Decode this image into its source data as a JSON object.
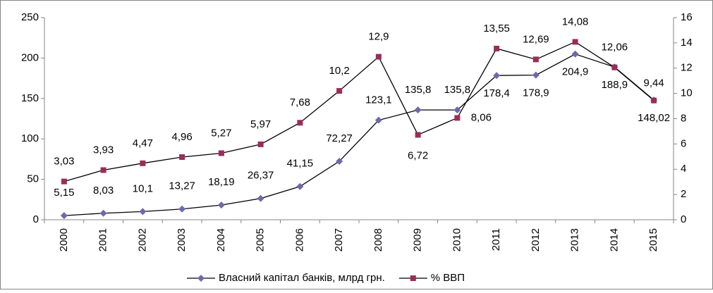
{
  "chart_data": {
    "type": "line",
    "categories": [
      "2000",
      "2001",
      "2002",
      "2003",
      "2004",
      "2005",
      "2006",
      "2007",
      "2008",
      "2009",
      "2010",
      "2011",
      "2012",
      "2013",
      "2014",
      "2015"
    ],
    "series": [
      {
        "name": "Власний капітал банків, млрд грн.",
        "color": "#6b6bab",
        "marker": "diamond",
        "values": [
          5.15,
          8.03,
          10.1,
          13.27,
          18.19,
          26.37,
          41.15,
          72.27,
          123.1,
          135.8,
          135.8,
          178.4,
          178.9,
          204.9,
          188.9,
          148.02
        ],
        "value_labels": [
          "5,15",
          "8,03",
          "10,1",
          "13,27",
          "18,19",
          "26,37",
          "41,15",
          "72,27",
          "123,1",
          "135,8",
          "135,8",
          "178,4",
          "178,9",
          "204,9",
          "188,9",
          "148,02"
        ]
      },
      {
        "name": "% ВВП",
        "color": "#9b2c5a",
        "marker": "square",
        "axis": "y2",
        "values": [
          3.03,
          3.93,
          4.47,
          4.96,
          5.27,
          5.97,
          7.68,
          10.2,
          12.9,
          6.72,
          8.06,
          13.55,
          12.69,
          14.08,
          12.06,
          9.44
        ],
        "value_labels": [
          "3,03",
          "3,93",
          "4,47",
          "4,96",
          "5,27",
          "5,97",
          "7,68",
          "10,2",
          "12,9",
          "6,72",
          "8,06",
          "13,55",
          "12,69",
          "14,08",
          "12,06",
          "9,44"
        ]
      }
    ],
    "ylim": [
      0,
      250
    ],
    "yticks": [
      0,
      50,
      100,
      150,
      200,
      250
    ],
    "y2lim": [
      0,
      16
    ],
    "y2ticks": [
      0,
      2,
      4,
      6,
      8,
      10,
      12,
      14,
      16
    ],
    "grid": false,
    "legend": "bottom"
  }
}
